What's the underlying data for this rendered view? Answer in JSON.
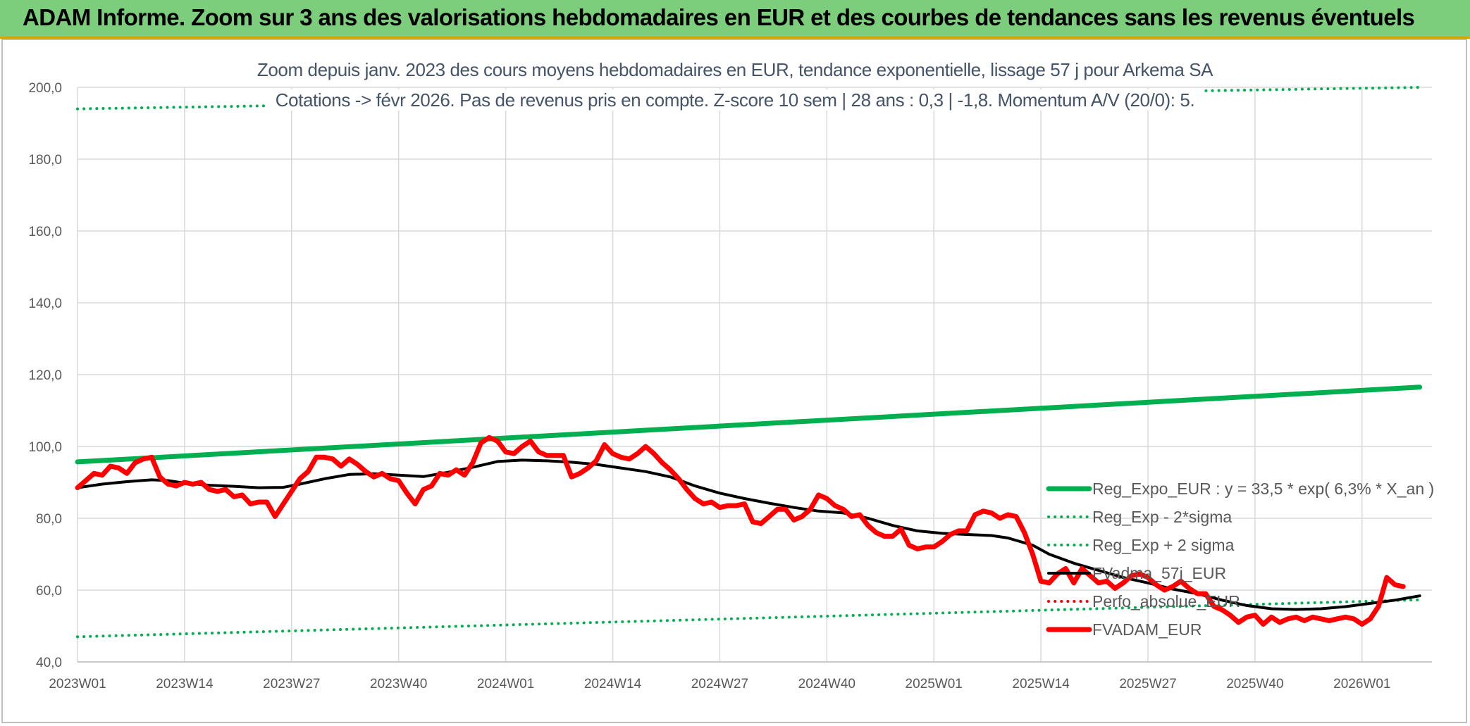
{
  "banner": {
    "title": "ADAM Informe. Zoom sur 3 ans des valorisations hebdomadaires en EUR et des courbes de tendances sans les revenus éventuels"
  },
  "chart_data": {
    "type": "line",
    "title_line1": "Zoom depuis janv. 2023 des cours moyens hebdomadaires en EUR, tendance exponentielle, lissage 57 j pour Arkema SA",
    "title_line2": "Cotations -> févr 2026. Pas de revenus pris en compte. Z-score 10 sem | 28 ans : 0,3 | -1,8. Momentum A/V (20/0): 5.",
    "ylim": [
      40,
      200
    ],
    "y_ticks": [
      "40,0",
      "60,0",
      "80,0",
      "100,0",
      "120,0",
      "140,0",
      "160,0",
      "180,0",
      "200,0"
    ],
    "x_ticks": [
      "2023W01",
      "2023W14",
      "2023W27",
      "2023W40",
      "2024W01",
      "2024W14",
      "2024W27",
      "2024W40",
      "2025W01",
      "2025W14",
      "2025W27",
      "2025W40",
      "2026W01"
    ],
    "grid": true,
    "legend_position": "bottom-right",
    "series": [
      {
        "name": "Reg_Expo_EUR : y = 33,5 * exp( 6,3% *  X_an )",
        "color": "#00b050",
        "style": "solid-thick",
        "points": [
          [
            "2023W01",
            95.7
          ],
          [
            "2026W08",
            116.5
          ]
        ]
      },
      {
        "name": "Reg_Exp - 2*sigma",
        "color": "#00b050",
        "style": "dotted",
        "points": [
          [
            "2023W01",
            47.0
          ],
          [
            "2026W08",
            57.3
          ]
        ]
      },
      {
        "name": "Reg_Exp + 2 sigma",
        "color": "#00b050",
        "style": "dotted",
        "points": [
          [
            "2023W01",
            194.0
          ],
          [
            "2026W08",
            200.0
          ]
        ]
      },
      {
        "name": "FVadma_57j_EUR",
        "color": "#000000",
        "style": "solid",
        "points": [
          [
            "2023W01",
            88.5
          ],
          [
            "2023W04",
            89.5
          ],
          [
            "2023W07",
            90.2
          ],
          [
            "2023W10",
            90.7
          ],
          [
            "2023W12",
            90.5
          ],
          [
            "2023W14",
            89.8
          ],
          [
            "2023W17",
            89.2
          ],
          [
            "2023W20",
            88.9
          ],
          [
            "2023W23",
            88.5
          ],
          [
            "2023W26",
            88.6
          ],
          [
            "2023W28",
            89.5
          ],
          [
            "2023W31",
            91.0
          ],
          [
            "2023W34",
            92.2
          ],
          [
            "2023W37",
            92.4
          ],
          [
            "2023W40",
            92.0
          ],
          [
            "2023W43",
            91.6
          ],
          [
            "2023W46",
            92.8
          ],
          [
            "2023W49",
            94.2
          ],
          [
            "2023W52",
            95.8
          ],
          [
            "2024W03",
            96.2
          ],
          [
            "2024W06",
            96.0
          ],
          [
            "2024W09",
            95.6
          ],
          [
            "2024W12",
            95.0
          ],
          [
            "2024W15",
            94.0
          ],
          [
            "2024W18",
            93.0
          ],
          [
            "2024W21",
            91.5
          ],
          [
            "2024W24",
            89.0
          ],
          [
            "2024W27",
            87.0
          ],
          [
            "2024W30",
            85.5
          ],
          [
            "2024W33",
            84.2
          ],
          [
            "2024W36",
            83.0
          ],
          [
            "2024W39",
            82.0
          ],
          [
            "2024W42",
            81.5
          ],
          [
            "2024W45",
            80.0
          ],
          [
            "2024W48",
            78.0
          ],
          [
            "2024W51",
            76.5
          ],
          [
            "2025W02",
            75.8
          ],
          [
            "2025W05",
            75.5
          ],
          [
            "2025W08",
            75.2
          ],
          [
            "2025W10",
            74.5
          ],
          [
            "2025W13",
            72.5
          ],
          [
            "2025W15",
            70.0
          ],
          [
            "2025W18",
            67.5
          ],
          [
            "2025W21",
            65.5
          ],
          [
            "2025W24",
            63.5
          ],
          [
            "2025W27",
            62.0
          ],
          [
            "2025W30",
            60.3
          ],
          [
            "2025W33",
            59.0
          ],
          [
            "2025W36",
            57.2
          ],
          [
            "2025W39",
            55.7
          ],
          [
            "2025W42",
            54.8
          ],
          [
            "2025W45",
            54.6
          ],
          [
            "2025W48",
            54.8
          ],
          [
            "2025W51",
            55.4
          ],
          [
            "2026W02",
            56.3
          ],
          [
            "2026W05",
            57.2
          ],
          [
            "2026W07",
            58.0
          ],
          [
            "2026W08",
            58.4
          ]
        ]
      },
      {
        "name": "Perfo_absolue_EUR",
        "color": "#ff0000",
        "style": "dotted",
        "points": []
      },
      {
        "name": "FVADAM_EUR",
        "color": "#ff0000",
        "style": "solid-thick",
        "points": [
          [
            "2023W01",
            88.5
          ],
          [
            "2023W02",
            90.5
          ],
          [
            "2023W03",
            92.5
          ],
          [
            "2023W04",
            92.0
          ],
          [
            "2023W05",
            94.5
          ],
          [
            "2023W06",
            94.0
          ],
          [
            "2023W07",
            92.5
          ],
          [
            "2023W08",
            95.5
          ],
          [
            "2023W09",
            96.5
          ],
          [
            "2023W10",
            97.0
          ],
          [
            "2023W11",
            91.5
          ],
          [
            "2023W12",
            89.5
          ],
          [
            "2023W13",
            89.0
          ],
          [
            "2023W14",
            90.0
          ],
          [
            "2023W15",
            89.5
          ],
          [
            "2023W16",
            90.0
          ],
          [
            "2023W17",
            88.0
          ],
          [
            "2023W18",
            87.5
          ],
          [
            "2023W19",
            88.0
          ],
          [
            "2023W20",
            86.0
          ],
          [
            "2023W21",
            86.5
          ],
          [
            "2023W22",
            84.0
          ],
          [
            "2023W23",
            84.5
          ],
          [
            "2023W24",
            84.5
          ],
          [
            "2023W25",
            80.5
          ],
          [
            "2023W26",
            84.0
          ],
          [
            "2023W27",
            87.5
          ],
          [
            "2023W28",
            91.0
          ],
          [
            "2023W29",
            93.0
          ],
          [
            "2023W30",
            97.0
          ],
          [
            "2023W31",
            97.0
          ],
          [
            "2023W32",
            96.5
          ],
          [
            "2023W33",
            94.5
          ],
          [
            "2023W34",
            96.5
          ],
          [
            "2023W35",
            95.0
          ],
          [
            "2023W36",
            93.0
          ],
          [
            "2023W37",
            91.5
          ],
          [
            "2023W38",
            92.5
          ],
          [
            "2023W39",
            91.0
          ],
          [
            "2023W40",
            90.5
          ],
          [
            "2023W41",
            87.0
          ],
          [
            "2023W42",
            84.0
          ],
          [
            "2023W43",
            88.0
          ],
          [
            "2023W44",
            89.0
          ],
          [
            "2023W45",
            92.5
          ],
          [
            "2023W46",
            92.0
          ],
          [
            "2023W47",
            93.5
          ],
          [
            "2023W48",
            92.0
          ],
          [
            "2023W49",
            95.5
          ],
          [
            "2023W50",
            101.0
          ],
          [
            "2023W51",
            102.5
          ],
          [
            "2023W52",
            101.5
          ],
          [
            "2024W01",
            98.5
          ],
          [
            "2024W02",
            98.0
          ],
          [
            "2024W03",
            100.0
          ],
          [
            "2024W04",
            101.5
          ],
          [
            "2024W05",
            98.5
          ],
          [
            "2024W06",
            97.5
          ],
          [
            "2024W07",
            97.5
          ],
          [
            "2024W08",
            97.5
          ],
          [
            "2024W09",
            91.5
          ],
          [
            "2024W10",
            92.5
          ],
          [
            "2024W11",
            94.0
          ],
          [
            "2024W12",
            96.0
          ],
          [
            "2024W13",
            100.5
          ],
          [
            "2024W14",
            98.0
          ],
          [
            "2024W15",
            97.0
          ],
          [
            "2024W16",
            96.5
          ],
          [
            "2024W17",
            98.0
          ],
          [
            "2024W18",
            100.0
          ],
          [
            "2024W19",
            98.0
          ],
          [
            "2024W20",
            95.5
          ],
          [
            "2024W21",
            93.5
          ],
          [
            "2024W22",
            91.0
          ],
          [
            "2024W23",
            88.0
          ],
          [
            "2024W24",
            85.5
          ],
          [
            "2024W25",
            84.0
          ],
          [
            "2024W26",
            84.5
          ],
          [
            "2024W27",
            83.0
          ],
          [
            "2024W28",
            83.5
          ],
          [
            "2024W29",
            83.5
          ],
          [
            "2024W30",
            84.0
          ],
          [
            "2024W31",
            79.0
          ],
          [
            "2024W32",
            78.5
          ],
          [
            "2024W33",
            80.5
          ],
          [
            "2024W34",
            82.5
          ],
          [
            "2024W35",
            82.5
          ],
          [
            "2024W36",
            79.5
          ],
          [
            "2024W37",
            80.5
          ],
          [
            "2024W38",
            82.5
          ],
          [
            "2024W39",
            86.5
          ],
          [
            "2024W40",
            85.5
          ],
          [
            "2024W41",
            83.5
          ],
          [
            "2024W42",
            82.5
          ],
          [
            "2024W43",
            80.5
          ],
          [
            "2024W44",
            81.0
          ],
          [
            "2024W45",
            78.0
          ],
          [
            "2024W46",
            76.0
          ],
          [
            "2024W47",
            75.0
          ],
          [
            "2024W48",
            75.0
          ],
          [
            "2024W49",
            77.0
          ],
          [
            "2024W50",
            72.5
          ],
          [
            "2024W51",
            71.5
          ],
          [
            "2024W52",
            72.0
          ],
          [
            "2025W01",
            72.0
          ],
          [
            "2025W02",
            73.5
          ],
          [
            "2025W03",
            75.5
          ],
          [
            "2025W04",
            76.5
          ],
          [
            "2025W05",
            76.5
          ],
          [
            "2025W06",
            81.0
          ],
          [
            "2025W07",
            82.0
          ],
          [
            "2025W08",
            81.5
          ],
          [
            "2025W09",
            80.0
          ],
          [
            "2025W10",
            81.0
          ],
          [
            "2025W11",
            80.5
          ],
          [
            "2025W12",
            76.0
          ],
          [
            "2025W13",
            70.0
          ],
          [
            "2025W14",
            62.5
          ],
          [
            "2025W15",
            62.0
          ],
          [
            "2025W16",
            64.5
          ],
          [
            "2025W17",
            66.0
          ],
          [
            "2025W18",
            62.0
          ],
          [
            "2025W19",
            66.0
          ],
          [
            "2025W20",
            64.0
          ],
          [
            "2025W21",
            62.0
          ],
          [
            "2025W22",
            62.5
          ],
          [
            "2025W23",
            60.5
          ],
          [
            "2025W24",
            62.0
          ],
          [
            "2025W25",
            64.0
          ],
          [
            "2025W26",
            64.5
          ],
          [
            "2025W27",
            63.5
          ],
          [
            "2025W28",
            61.5
          ],
          [
            "2025W29",
            60.0
          ],
          [
            "2025W30",
            61.0
          ],
          [
            "2025W31",
            62.5
          ],
          [
            "2025W32",
            60.5
          ],
          [
            "2025W33",
            59.0
          ],
          [
            "2025W34",
            59.0
          ],
          [
            "2025W35",
            55.5
          ],
          [
            "2025W36",
            54.5
          ],
          [
            "2025W37",
            53.0
          ],
          [
            "2025W38",
            51.0
          ],
          [
            "2025W39",
            52.5
          ],
          [
            "2025W40",
            53.0
          ],
          [
            "2025W41",
            50.5
          ],
          [
            "2025W42",
            52.5
          ],
          [
            "2025W43",
            51.0
          ],
          [
            "2025W44",
            52.0
          ],
          [
            "2025W45",
            52.5
          ],
          [
            "2025W46",
            51.5
          ],
          [
            "2025W47",
            52.5
          ],
          [
            "2025W48",
            52.0
          ],
          [
            "2025W49",
            51.5
          ],
          [
            "2025W50",
            52.0
          ],
          [
            "2025W51",
            52.5
          ],
          [
            "2025W52",
            52.0
          ],
          [
            "2026W01",
            50.5
          ],
          [
            "2026W02",
            52.0
          ],
          [
            "2026W03",
            55.5
          ],
          [
            "2026W04",
            63.5
          ],
          [
            "2026W05",
            61.5
          ],
          [
            "2026W06",
            61.0
          ]
        ]
      }
    ]
  }
}
